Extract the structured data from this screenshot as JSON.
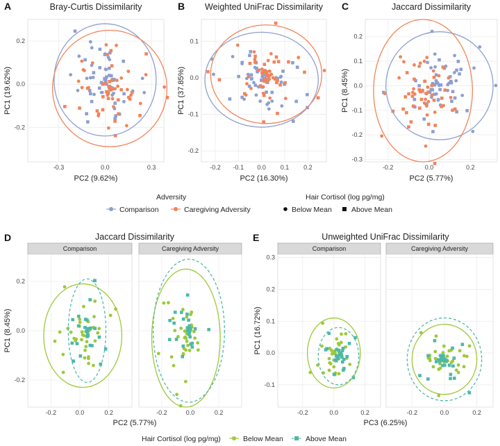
{
  "colors": {
    "comparison": "#8d9fd0",
    "caregiving": "#f2835a",
    "below": "#9cc93a",
    "above": "#4db8a8"
  },
  "legend_top": {
    "adversity_title": "Adversity",
    "adversity_items": [
      "Comparison",
      "Caregiving Adversity"
    ],
    "cortisol_title": "Hair Cortisol (log pg/mg)",
    "cortisol_items": [
      "Below Mean",
      "Above Mean"
    ]
  },
  "legend_bottom": {
    "title": "Hair Cortisol (log pg/mg)",
    "items": [
      "Below Mean",
      "Above Mean"
    ]
  },
  "chart_data": [
    {
      "panel": "A",
      "type": "scatter",
      "title": "Bray-Curtis Dissimilarity",
      "xlabel": "PC2 (9.62%)",
      "ylabel": "PC1 (19.62%)",
      "xlim": [
        -0.5,
        0.38
      ],
      "ylim": [
        -0.36,
        0.3
      ],
      "xticks": [
        -0.3,
        0.0,
        0.3
      ],
      "yticks": [
        -0.2,
        0.0,
        0.2
      ],
      "grid": true,
      "series": [
        {
          "name": "Comparison",
          "ellipse": {
            "cx": 0.0,
            "cy": 0.02,
            "rx": 0.33,
            "ry": 0.26
          }
        },
        {
          "name": "Caregiving Adversity",
          "ellipse": {
            "cx": 0.03,
            "cy": -0.02,
            "rx": 0.37,
            "ry": 0.27
          }
        }
      ]
    },
    {
      "panel": "B",
      "type": "scatter",
      "title": "Weighted UniFrac Dissimilarity",
      "xlabel": "PC2 (16.30%)",
      "ylabel": "PC1 (37.85%)",
      "xlim": [
        -0.26,
        0.28
      ],
      "ylim": [
        -0.23,
        0.16
      ],
      "xticks": [
        -0.2,
        -0.1,
        0.0,
        0.1,
        0.2
      ],
      "yticks": [
        -0.2,
        -0.1,
        0.0,
        0.1
      ],
      "grid": true,
      "series": [
        {
          "name": "Comparison",
          "ellipse": {
            "cx": 0.0,
            "cy": -0.005,
            "rx": 0.245,
            "ry": 0.13
          }
        },
        {
          "name": "Caregiving Adversity",
          "ellipse": {
            "cx": 0.02,
            "cy": 0.01,
            "rx": 0.24,
            "ry": 0.135
          }
        }
      ]
    },
    {
      "panel": "C",
      "type": "scatter",
      "title": "Jaccard Dissimilarity",
      "xlabel": "PC2 (5.77%)",
      "ylabel": "PC1 (8.45%)",
      "xlim": [
        -0.31,
        0.33
      ],
      "ylim": [
        -0.31,
        0.27
      ],
      "xticks": [
        -0.2,
        0.0,
        0.2
      ],
      "yticks": [
        -0.3,
        -0.2,
        -0.1,
        0.0,
        0.1,
        0.2
      ],
      "grid": true,
      "series": [
        {
          "name": "Comparison",
          "ellipse": {
            "cx": 0.05,
            "cy": 0.0,
            "rx": 0.26,
            "ry": 0.22
          }
        },
        {
          "name": "Caregiving Adversity",
          "ellipse": {
            "cx": -0.03,
            "cy": -0.02,
            "rx": 0.24,
            "ry": 0.29
          }
        }
      ]
    },
    {
      "panel": "D",
      "type": "scatter",
      "title": "Jaccard Dissimilarity",
      "xlabel": "PC2 (5.77%)",
      "ylabel": "PC1 (8.45%)",
      "xlim": [
        -0.36,
        0.36
      ],
      "ylim": [
        -0.31,
        0.31
      ],
      "xticks": [
        -0.2,
        0.0,
        0.2
      ],
      "yticks": [
        -0.2,
        0.0,
        0.2
      ],
      "grid": true,
      "facets": [
        {
          "label": "Comparison",
          "ellipses": [
            {
              "group": "Below Mean",
              "cx": 0.02,
              "cy": -0.02,
              "rx": 0.27,
              "ry": 0.21
            },
            {
              "group": "Above Mean",
              "cx": 0.05,
              "cy": 0.0,
              "rx": 0.13,
              "ry": 0.21
            }
          ]
        },
        {
          "label": "Caregiving Adversity",
          "ellipses": [
            {
              "group": "Below Mean",
              "cx": -0.03,
              "cy": -0.03,
              "rx": 0.24,
              "ry": 0.28
            },
            {
              "group": "Above Mean",
              "cx": -0.01,
              "cy": 0.0,
              "rx": 0.25,
              "ry": 0.29
            }
          ]
        }
      ]
    },
    {
      "panel": "E",
      "type": "scatter",
      "title": "Unweighted UniFrac Dissimilarity",
      "xlabel": "PC3 (6.25%)",
      "ylabel": "PC1 (16.72%)",
      "xlim": [
        -0.36,
        0.3
      ],
      "ylim": [
        -0.17,
        0.31
      ],
      "xticks": [
        -0.2,
        0.0,
        0.2
      ],
      "yticks": [
        -0.1,
        0.0,
        0.1,
        0.2,
        0.3
      ],
      "grid": true,
      "facets": [
        {
          "label": "Comparison",
          "ellipses": [
            {
              "group": "Below Mean",
              "cx": 0.0,
              "cy": 0.0,
              "rx": 0.17,
              "ry": 0.11
            },
            {
              "group": "Above Mean",
              "cx": 0.03,
              "cy": -0.01,
              "rx": 0.13,
              "ry": 0.09
            }
          ]
        },
        {
          "label": "Caregiving Adversity",
          "ellipses": [
            {
              "group": "Below Mean",
              "cx": 0.0,
              "cy": -0.02,
              "rx": 0.2,
              "ry": 0.11
            },
            {
              "group": "Above Mean",
              "cx": 0.0,
              "cy": -0.02,
              "rx": 0.23,
              "ry": 0.13
            }
          ]
        }
      ]
    }
  ]
}
